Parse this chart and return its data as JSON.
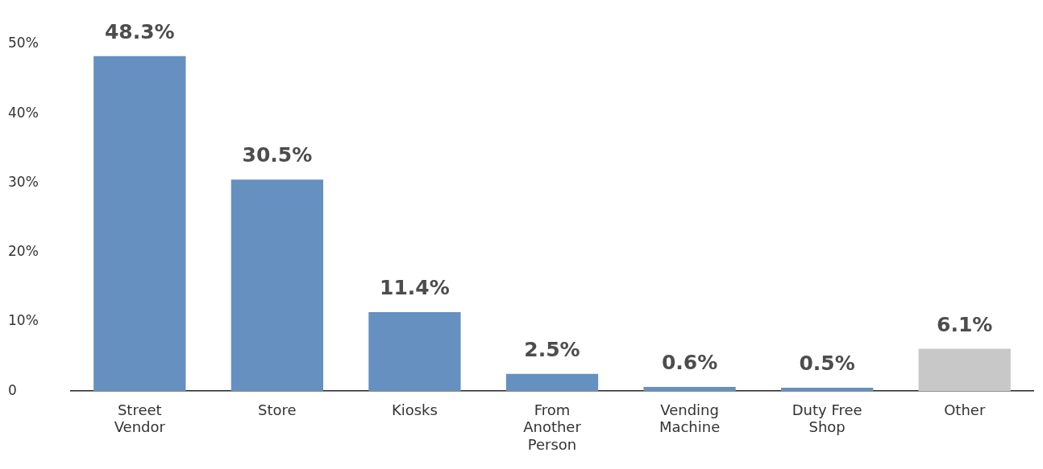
{
  "chart_data": {
    "type": "bar",
    "categories": [
      "Street Vendor",
      "Store",
      "Kiosks",
      "From Another Person",
      "Vending Machine",
      "Duty Free Shop",
      "Other"
    ],
    "values": [
      48.3,
      30.5,
      11.4,
      2.5,
      0.6,
      0.5,
      6.1
    ],
    "colors": [
      "#6590c0",
      "#6590c0",
      "#6590c0",
      "#6590c0",
      "#6590c0",
      "#6590c0",
      "#c8c8c9"
    ],
    "value_labels": [
      "48.3%",
      "30.5%",
      "11.4%",
      "2.5%",
      "0.6%",
      "0.5%",
      "6.1%"
    ],
    "ylim": [
      0,
      50
    ],
    "yticks": [
      0,
      {
        "value": 10,
        "label": "10%"
      },
      {
        "value": 20,
        "label": "20%"
      },
      {
        "value": 30,
        "label": "30%"
      },
      {
        "value": 40,
        "label": "40%"
      },
      {
        "value": 50,
        "label": "50%"
      }
    ],
    "grid": false,
    "legend": false
  }
}
